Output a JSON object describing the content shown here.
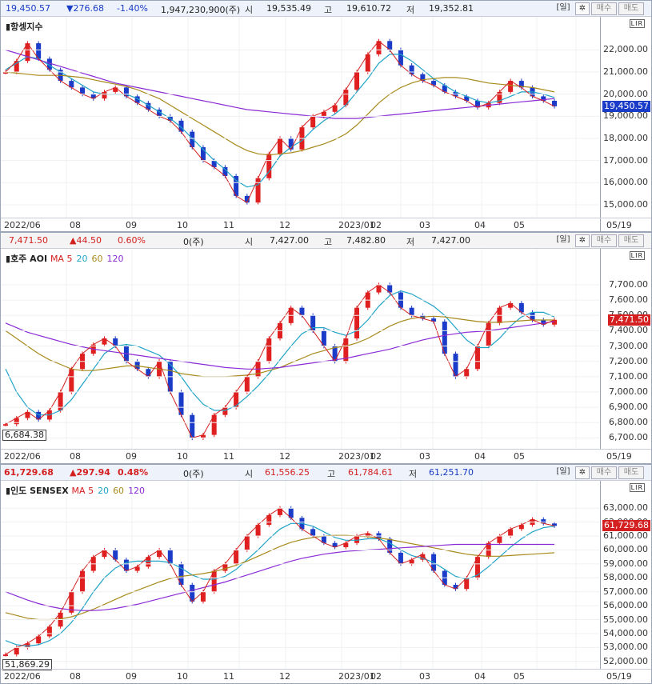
{
  "panels": [
    {
      "id": "hsi",
      "header": {
        "price": "19,450.57",
        "change": "▼276.68",
        "pct": "-1.40%",
        "volume": "1,947,230,900(주)",
        "open_label": "시",
        "open": "19,535.49",
        "high_label": "고",
        "high": "19,610.72",
        "low_label": "저",
        "low": "19,352.81",
        "period": "[일]",
        "gear": "✲",
        "buy": "매수",
        "sell": "매도",
        "price_color": "#1a3cc8"
      },
      "title": "항셍지수",
      "ma_prefix": "",
      "ma_labels": [],
      "y_ticks": [
        "22,000.00",
        "21,000.00",
        "20,000.00",
        "19,000.00",
        "18,000.00",
        "17,000.00",
        "16,000.00",
        "15,000.00"
      ],
      "current_tag": "19,450.57",
      "current_tag_color": "#1a3cc8",
      "box_label": "",
      "x_labels": [
        "2022/06",
        "08",
        "09",
        "10",
        "11",
        "12",
        "2023/01",
        "02",
        "03",
        "04",
        "05",
        "05/19"
      ]
    },
    {
      "id": "aoi",
      "header": {
        "price": "7,471.50",
        "change": "▲44.50",
        "pct": "0.60%",
        "volume": "0(주)",
        "open_label": "시",
        "open": "7,427.00",
        "high_label": "고",
        "high": "7,482.80",
        "low_label": "저",
        "low": "7,427.00",
        "period": "[일]",
        "gear": "✲",
        "buy": "매수",
        "sell": "매도",
        "price_color": "#d42020"
      },
      "title": "호주 AOI",
      "ma_prefix": "MA",
      "ma_labels": [
        "5",
        "20",
        "60",
        "120"
      ],
      "y_ticks": [
        "7,700.00",
        "7,600.00",
        "7,500.00",
        "7,400.00",
        "7,300.00",
        "7,200.00",
        "7,100.00",
        "7,000.00",
        "6,900.00",
        "6,800.00",
        "6,700.00"
      ],
      "current_tag": "7,471.50",
      "current_tag_color": "#d42020",
      "box_label": "6,684.38",
      "x_labels": [
        "2022/06",
        "08",
        "09",
        "10",
        "11",
        "12",
        "2023/01",
        "02",
        "03",
        "04",
        "05",
        "05/19"
      ]
    },
    {
      "id": "sensex",
      "header": {
        "price": "61,729.68",
        "change": "▲297.94",
        "pct": "0.48%",
        "volume": "0(주)",
        "open_label": "시",
        "open": "61,556.25",
        "high_label": "고",
        "high": "61,784.61",
        "low_label": "저",
        "low": "61,251.70",
        "period": "[일]",
        "gear": "✲",
        "buy": "매수",
        "sell": "매도",
        "price_color": "#d42020"
      },
      "title": "인도 SENSEX",
      "ma_prefix": "MA",
      "ma_labels": [
        "5",
        "20",
        "60",
        "120"
      ],
      "y_ticks": [
        "63,000.00",
        "62,000.00",
        "61,000.00",
        "60,000.00",
        "59,000.00",
        "58,000.00",
        "57,000.00",
        "56,000.00",
        "55,000.00",
        "54,000.00",
        "53,000.00",
        "52,000.00"
      ],
      "current_tag": "61,729.68",
      "current_tag_color": "#d42020",
      "box_label": "51,869.29",
      "x_labels": [
        "2022/06",
        "08",
        "09",
        "10",
        "11",
        "12",
        "2023/01",
        "02",
        "03",
        "04",
        "05",
        "05/19"
      ]
    }
  ],
  "axis_badge": "LIR",
  "ma_colors": [
    "#d42020",
    "#1fa3c7",
    "#a88a1c",
    "#8a2bd6"
  ],
  "chart_data": [
    {
      "type": "candlestick",
      "title": "항셍지수",
      "ylim": [
        14600,
        22700
      ],
      "close": [
        21000,
        21500,
        22300,
        21600,
        21100,
        20600,
        20300,
        20000,
        19800,
        20100,
        20300,
        19900,
        19600,
        19300,
        19000,
        18800,
        18300,
        17600,
        17000,
        16700,
        16300,
        15400,
        15100,
        16200,
        17300,
        18000,
        17500,
        18500,
        19000,
        19200,
        19500,
        20200,
        21000,
        21800,
        22400,
        22000,
        21300,
        20900,
        20600,
        20400,
        20100,
        19900,
        19700,
        19400,
        19600,
        20100,
        20600,
        20300,
        19900,
        19700,
        19450
      ],
      "ma20": [
        21100,
        21400,
        21700,
        21600,
        21300,
        21000,
        20700,
        20400,
        20100,
        20000,
        20000,
        20000,
        19800,
        19500,
        19200,
        18900,
        18500,
        18000,
        17500,
        17000,
        16600,
        16100,
        15800,
        15900,
        16500,
        17200,
        17600,
        17900,
        18400,
        18800,
        19100,
        19500,
        20100,
        20700,
        21400,
        21800,
        21800,
        21500,
        21100,
        20700,
        20400,
        20100,
        19900,
        19700,
        19600,
        19700,
        19900,
        20100,
        20100,
        20000,
        19850
      ],
      "ma60": [
        21000,
        20950,
        20900,
        20850,
        20850,
        20850,
        20800,
        20750,
        20650,
        20550,
        20450,
        20350,
        20200,
        20000,
        19800,
        19500,
        19200,
        18900,
        18600,
        18300,
        18000,
        17700,
        17450,
        17300,
        17250,
        17300,
        17350,
        17450,
        17600,
        17750,
        17950,
        18200,
        18600,
        19100,
        19600,
        20000,
        20300,
        20500,
        20650,
        20700,
        20750,
        20750,
        20700,
        20600,
        20500,
        20450,
        20400,
        20350,
        20300,
        20200,
        20100
      ],
      "ma120": [
        22000,
        21850,
        21700,
        21550,
        21400,
        21250,
        21100,
        20950,
        20800,
        20650,
        20500,
        20400,
        20300,
        20200,
        20100,
        20000,
        19900,
        19800,
        19700,
        19600,
        19500,
        19400,
        19300,
        19250,
        19200,
        19150,
        19100,
        19050,
        19000,
        18950,
        18900,
        18900,
        18900,
        18950,
        19000,
        19050,
        19100,
        19150,
        19200,
        19250,
        19300,
        19350,
        19400,
        19450,
        19500,
        19550,
        19600,
        19650,
        19700,
        19750,
        19800
      ]
    },
    {
      "type": "candlestick",
      "title": "호주 AOI",
      "ylim": [
        6650,
        7820
      ],
      "close": [
        6790,
        6830,
        6870,
        6820,
        6880,
        7000,
        7150,
        7250,
        7310,
        7350,
        7300,
        7200,
        7150,
        7100,
        7200,
        7000,
        6850,
        6700,
        6720,
        6850,
        6900,
        7000,
        7100,
        7200,
        7350,
        7450,
        7550,
        7500,
        7400,
        7300,
        7200,
        7350,
        7550,
        7650,
        7700,
        7650,
        7550,
        7500,
        7480,
        7460,
        7250,
        7100,
        7150,
        7300,
        7450,
        7550,
        7580,
        7520,
        7470,
        7440,
        7471
      ],
      "ma20": [
        7150,
        7000,
        6900,
        6850,
        6850,
        6880,
        6950,
        7050,
        7150,
        7250,
        7300,
        7310,
        7300,
        7270,
        7240,
        7180,
        7100,
        7000,
        6920,
        6880,
        6880,
        6910,
        6970,
        7040,
        7120,
        7210,
        7300,
        7380,
        7420,
        7420,
        7390,
        7370,
        7400,
        7470,
        7560,
        7630,
        7660,
        7640,
        7600,
        7560,
        7500,
        7420,
        7340,
        7290,
        7290,
        7350,
        7430,
        7490,
        7520,
        7520,
        7490
      ],
      "ma60": [
        7400,
        7350,
        7300,
        7250,
        7210,
        7180,
        7150,
        7140,
        7140,
        7150,
        7160,
        7170,
        7170,
        7160,
        7150,
        7140,
        7120,
        7110,
        7100,
        7100,
        7100,
        7105,
        7110,
        7120,
        7140,
        7160,
        7190,
        7220,
        7250,
        7270,
        7290,
        7300,
        7320,
        7350,
        7390,
        7430,
        7460,
        7480,
        7490,
        7495,
        7490,
        7480,
        7470,
        7460,
        7455,
        7455,
        7460,
        7465,
        7470,
        7470,
        7470
      ],
      "ma120": [
        7450,
        7420,
        7390,
        7370,
        7350,
        7330,
        7310,
        7295,
        7280,
        7270,
        7260,
        7250,
        7240,
        7230,
        7220,
        7210,
        7200,
        7190,
        7180,
        7170,
        7160,
        7155,
        7150,
        7150,
        7155,
        7160,
        7170,
        7180,
        7190,
        7200,
        7210,
        7220,
        7235,
        7250,
        7265,
        7280,
        7300,
        7320,
        7340,
        7355,
        7370,
        7380,
        7390,
        7395,
        7400,
        7410,
        7420,
        7430,
        7440,
        7450,
        7460
      ]
    },
    {
      "type": "candlestick",
      "title": "인도 SENSEX",
      "ylim": [
        51700,
        63700
      ],
      "close": [
        52500,
        53000,
        53300,
        53800,
        54500,
        55500,
        57000,
        58500,
        59500,
        60000,
        59300,
        58500,
        58800,
        59500,
        60000,
        59000,
        57500,
        56300,
        57000,
        58500,
        59000,
        60000,
        61000,
        61800,
        62500,
        63000,
        62300,
        61500,
        61000,
        60500,
        60200,
        60500,
        61000,
        61200,
        60800,
        59800,
        59000,
        59300,
        59700,
        58500,
        57500,
        57200,
        58000,
        59500,
        60500,
        61000,
        61500,
        61800,
        62200,
        61900,
        61730
      ],
      "ma20": [
        53500,
        53200,
        53100,
        53200,
        53500,
        54000,
        54800,
        55800,
        57000,
        58000,
        58700,
        59100,
        59200,
        59200,
        59200,
        59100,
        58700,
        58200,
        57900,
        57900,
        58100,
        58600,
        59300,
        60000,
        60800,
        61500,
        61900,
        61900,
        61700,
        61300,
        60900,
        60700,
        60700,
        60800,
        60800,
        60500,
        60000,
        59600,
        59400,
        59100,
        58600,
        58100,
        57900,
        58200,
        58800,
        59500,
        60200,
        60800,
        61300,
        61600,
        61700
      ],
      "ma60": [
        55500,
        55300,
        55100,
        55000,
        55000,
        55050,
        55200,
        55450,
        55750,
        56100,
        56450,
        56800,
        57100,
        57400,
        57700,
        57950,
        58100,
        58200,
        58300,
        58450,
        58650,
        58900,
        59200,
        59550,
        59900,
        60250,
        60550,
        60750,
        60900,
        61000,
        61050,
        61050,
        61000,
        60950,
        60850,
        60750,
        60600,
        60450,
        60300,
        60150,
        60000,
        59850,
        59700,
        59600,
        59550,
        59550,
        59600,
        59650,
        59700,
        59750,
        59800
      ],
      "ma120": [
        57000,
        56700,
        56400,
        56150,
        55950,
        55800,
        55700,
        55650,
        55650,
        55700,
        55800,
        55950,
        56100,
        56300,
        56500,
        56700,
        56900,
        57100,
        57300,
        57500,
        57700,
        57950,
        58200,
        58450,
        58700,
        58950,
        59200,
        59400,
        59550,
        59700,
        59800,
        59900,
        59950,
        60000,
        60050,
        60100,
        60150,
        60200,
        60250,
        60300,
        60350,
        60400,
        60400,
        60400,
        60400,
        60400,
        60400,
        60400,
        60400,
        60400,
        60400
      ]
    }
  ]
}
